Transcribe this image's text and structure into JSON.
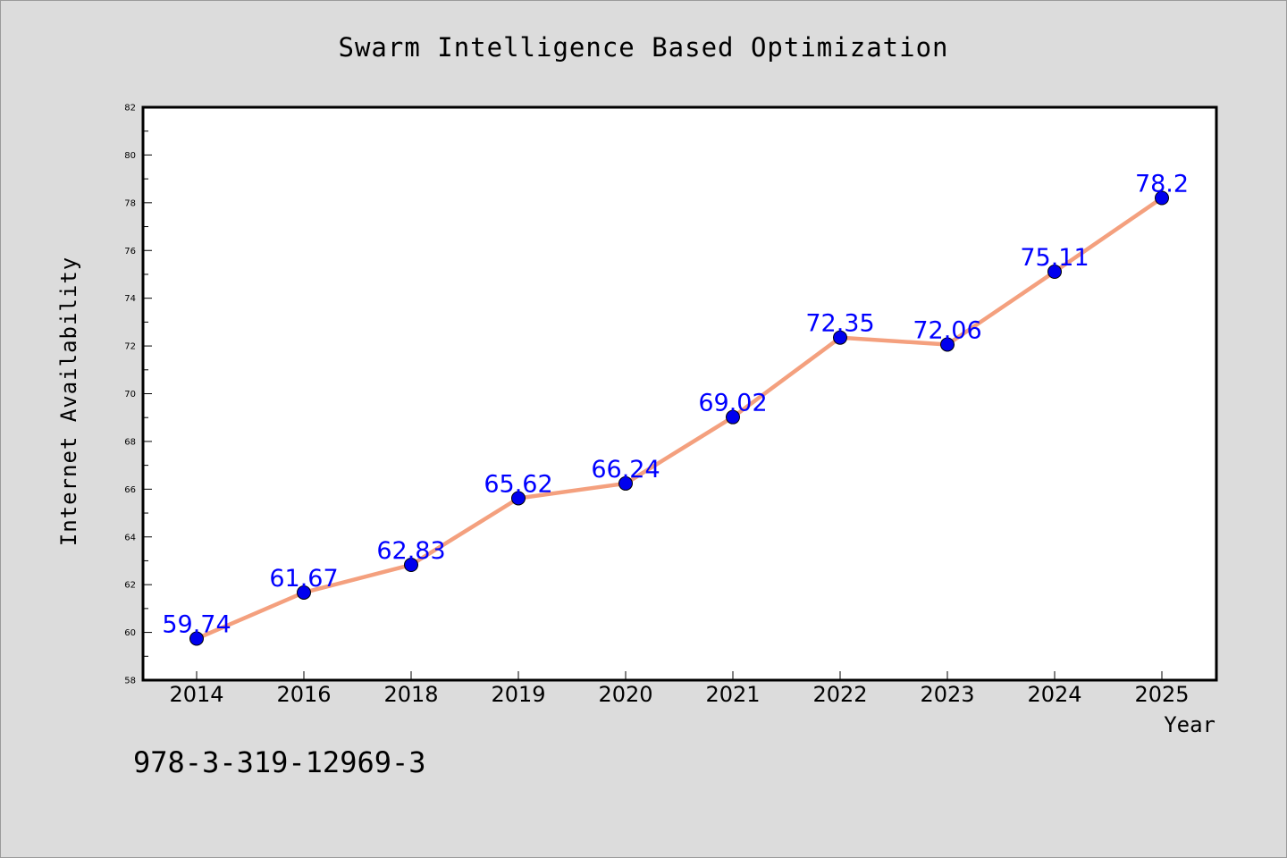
{
  "chart_data": {
    "type": "line",
    "title": "Swarm Intelligence Based Optimization",
    "xlabel": "Year",
    "ylabel": "Internet Availability",
    "categories": [
      "2014",
      "2016",
      "2018",
      "2019",
      "2020",
      "2021",
      "2022",
      "2023",
      "2024",
      "2025"
    ],
    "series": [
      {
        "values": [
          59.74,
          61.67,
          62.83,
          65.62,
          66.24,
          69.02,
          72.35,
          72.06,
          75.11,
          78.2
        ],
        "data_labels": [
          "59.74",
          "61.67",
          "62.83",
          "65.62",
          "66.24",
          "69.02",
          "72.35",
          "72.06",
          "75.11",
          "78.2"
        ]
      }
    ],
    "ylim": [
      58,
      82
    ],
    "yticks": [
      "58",
      "60",
      "62",
      "64",
      "66",
      "68",
      "70",
      "72",
      "74",
      "76",
      "78",
      "80",
      "82"
    ],
    "grid": false,
    "line_color": "#f4a07e",
    "marker_color": "#0000ee",
    "label_color": "#0000ff"
  },
  "footnote": "978-3-319-12969-3"
}
